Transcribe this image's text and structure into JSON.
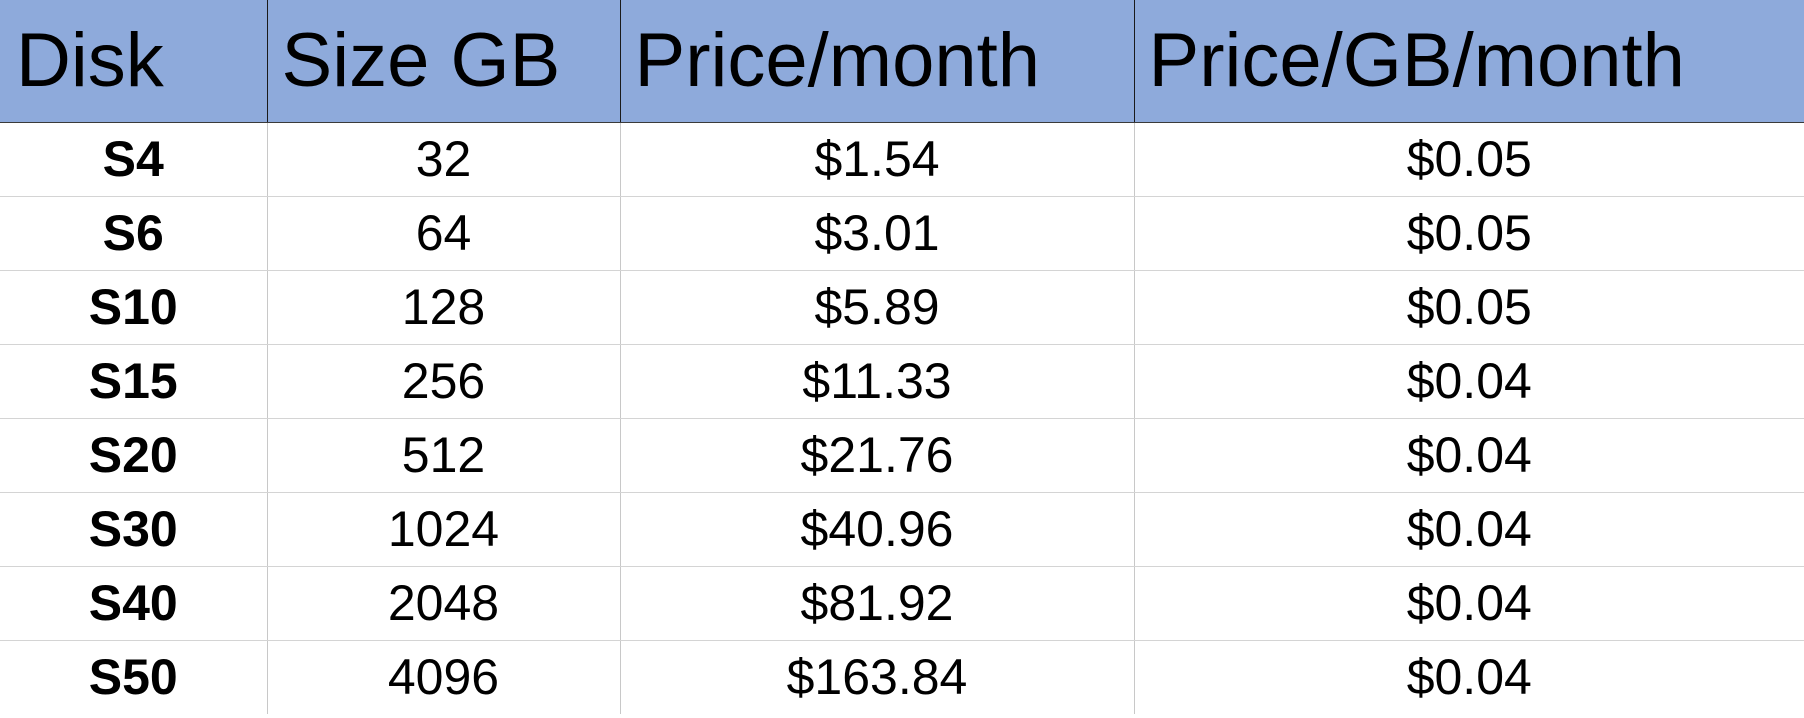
{
  "table": {
    "headers": [
      "Disk",
      "Size GB",
      "Price/month",
      "Price/GB/month"
    ],
    "rows": [
      [
        "S4",
        "32",
        "$1.54",
        "$0.05"
      ],
      [
        "S6",
        "64",
        "$3.01",
        "$0.05"
      ],
      [
        "S10",
        "128",
        "$5.89",
        "$0.05"
      ],
      [
        "S15",
        "256",
        "$11.33",
        "$0.04"
      ],
      [
        "S20",
        "512",
        "$21.76",
        "$0.04"
      ],
      [
        "S30",
        "1024",
        "$40.96",
        "$0.04"
      ],
      [
        "S40",
        "2048",
        "$81.92",
        "$0.04"
      ],
      [
        "S50",
        "4096",
        "$163.84",
        "$0.04"
      ]
    ]
  },
  "colors": {
    "header_background": "#8eaadb",
    "gridline": "#d4d4d4"
  }
}
